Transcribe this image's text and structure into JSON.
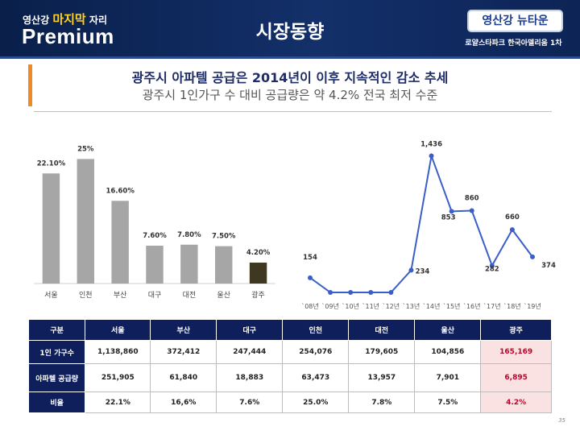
{
  "header": {
    "brand_line_a": "영산강",
    "brand_line_b": "마지막",
    "brand_line_c": "자리",
    "brand_premium": "Premium",
    "slide_title": "시장동향",
    "logo_text": "영산강 뉴타운",
    "logo_sub": "로얄스타파크  한국아델리움 1차"
  },
  "headline": "광주시 아파텔 공급은 2014년이 이후 지속적인 감소 추세",
  "subhead": "광주시 1인가구 수 대비 공급량은 약 4.2% 전국 최저 수준",
  "chart_data": [
    {
      "type": "bar",
      "categories": [
        "서울",
        "인천",
        "부산",
        "대구",
        "대전",
        "울산",
        "광주"
      ],
      "values": [
        22.1,
        25,
        16.6,
        7.6,
        7.8,
        7.5,
        4.2
      ],
      "labels": [
        "22.10%",
        "25%",
        "16.60%",
        "7.60%",
        "7.80%",
        "7.50%",
        "4.20%"
      ],
      "colors": {
        "default": "#a6a6a6",
        "highlight": "#3e3821"
      },
      "highlight_index": 6,
      "ylim": [
        0,
        27
      ]
    },
    {
      "type": "line",
      "categories": [
        "`08년",
        "`09년",
        "`10년",
        "`11년",
        "`12년",
        "`13년",
        "`14년",
        "`15년",
        "`16년",
        "`17년",
        "`18년",
        "`19년"
      ],
      "values": [
        154,
        0,
        0,
        0,
        0,
        234,
        1436,
        853,
        860,
        282,
        660,
        374
      ],
      "labels": [
        "154",
        "",
        "",
        "",
        "",
        "234",
        "1,436",
        "853",
        "860",
        "282",
        "660",
        "374"
      ],
      "color": "#3a5fc8",
      "ylim": [
        0,
        1500
      ]
    }
  ],
  "table": {
    "headers": [
      "구분",
      "서울",
      "부산",
      "대구",
      "인천",
      "대전",
      "울산",
      "광주"
    ],
    "rows": [
      {
        "label": "1인 가구수",
        "cells": [
          "1,138,860",
          "372,412",
          "247,444",
          "254,076",
          "179,605",
          "104,856",
          "165,169"
        ]
      },
      {
        "label": "아파텔 공급량",
        "cells": [
          "251,905",
          "61,840",
          "18,883",
          "63,473",
          "13,957",
          "7,901",
          "6,895"
        ]
      },
      {
        "label": "비율",
        "cells": [
          "22.1%",
          "16,6%",
          "7.6%",
          "25.0%",
          "7.8%",
          "7.5%",
          "4.2%"
        ]
      }
    ]
  },
  "page_number": "35"
}
